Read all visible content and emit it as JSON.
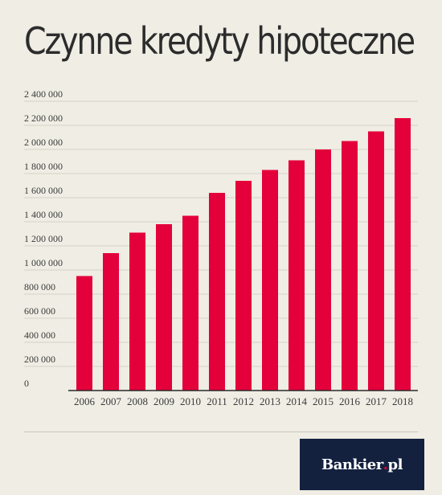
{
  "title": "Czynne kredyty hipoteczne",
  "brand": {
    "name": "Bankier",
    "dot": ".",
    "tld": "pl"
  },
  "colors": {
    "bar": "#e4003a",
    "background": "#efede4",
    "brand_bg": "#13213f",
    "grid": "#d6d3c9"
  },
  "chart_data": {
    "type": "bar",
    "title": "Czynne kredyty hipoteczne",
    "xlabel": "",
    "ylabel": "",
    "ylim": [
      0,
      2400000
    ],
    "yticks": [
      0,
      200000,
      400000,
      600000,
      800000,
      1000000,
      1200000,
      1400000,
      1600000,
      1800000,
      2000000,
      2200000,
      2400000
    ],
    "ytick_labels": [
      "0",
      "200 000",
      "400 000",
      "600 000",
      "800 000",
      "1 000 000",
      "1 200 000",
      "1 400 000",
      "1 600 000",
      "1 800 000",
      "2 000 000",
      "2 200 000",
      "2 400 000"
    ],
    "categories": [
      "2006",
      "2007",
      "2008",
      "2009",
      "2010",
      "2011",
      "2012",
      "2013",
      "2014",
      "2015",
      "2016",
      "2017",
      "2018"
    ],
    "values": [
      950000,
      1140000,
      1310000,
      1380000,
      1450000,
      1640000,
      1740000,
      1830000,
      1910000,
      2000000,
      2070000,
      2150000,
      2260000
    ],
    "grid": true,
    "legend": "none"
  }
}
